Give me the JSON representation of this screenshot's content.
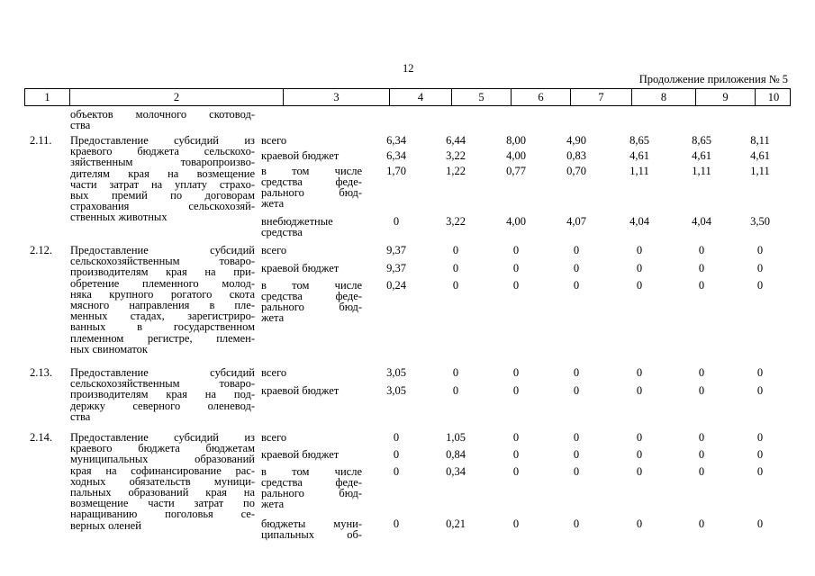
{
  "page": {
    "number": "12",
    "continuation": "Продолжение приложения № 5"
  },
  "header": [
    "1",
    "2",
    "3",
    "4",
    "5",
    "6",
    "7",
    "8",
    "9",
    "10"
  ],
  "carryover": [
    "объектов молочного скотовод-",
    "ства"
  ],
  "rows": [
    {
      "code": "2.11.",
      "description": [
        "Предоставление субсидий из",
        "краевого бюджета сельскохо-",
        "зяйственным товаропроизво-",
        "дителям края на возмещение",
        "части затрат на уплату страхо-",
        "вых премий по договорам",
        "страхования сельскохозяй-",
        "ственных животных"
      ],
      "funding": [
        {
          "source": [
            "всего"
          ],
          "values": [
            "6,34",
            "6,44",
            "8,00",
            "4,90",
            "8,65",
            "8,65",
            "8,11"
          ]
        },
        {
          "source": [
            "краевой бюджет"
          ],
          "values": [
            "6,34",
            "3,22",
            "4,00",
            "0,83",
            "4,61",
            "4,61",
            "4,61"
          ]
        },
        {
          "source": [
            "в том числе",
            "средства феде-",
            "рального бюд-",
            "жета"
          ],
          "values": [
            "1,70",
            "1,22",
            "0,77",
            "0,70",
            "1,11",
            "1,11",
            "1,11"
          ]
        },
        {
          "source": [
            "внебюджетные",
            "средства"
          ],
          "values": [
            "0",
            "3,22",
            "4,00",
            "4,07",
            "4,04",
            "4,04",
            "3,50"
          ]
        }
      ]
    },
    {
      "code": "2.12.",
      "description": [
        "Предоставление субсидий",
        "сельскохозяйственным товаро-",
        "производителям края на при-",
        "обретение племенного молод-",
        "няка крупного рогатого скота",
        "мясного направления в пле-",
        "менных стадах, зарегистриро-",
        "ванных в государственном",
        "племенном регистре, племен-",
        "ных свиноматок"
      ],
      "funding": [
        {
          "source": [
            "всего"
          ],
          "values": [
            "9,37",
            "0",
            "0",
            "0",
            "0",
            "0",
            "0"
          ]
        },
        {
          "source": [
            "краевой бюджет"
          ],
          "values": [
            "9,37",
            "0",
            "0",
            "0",
            "0",
            "0",
            "0"
          ]
        },
        {
          "source": [
            "в том числе",
            "средства феде-",
            "рального бюд-",
            "жета"
          ],
          "values": [
            "0,24",
            "0",
            "0",
            "0",
            "0",
            "0",
            "0"
          ]
        }
      ]
    },
    {
      "code": "2.13.",
      "description": [
        "Предоставление субсидий",
        "сельскохозяйственным товаро-",
        "производителям края на под-",
        "держку северного оленевод-",
        "ства"
      ],
      "funding": [
        {
          "source": [
            "всего"
          ],
          "values": [
            "3,05",
            "0",
            "0",
            "0",
            "0",
            "0",
            "0"
          ]
        },
        {
          "source": [
            "краевой бюджет"
          ],
          "values": [
            "3,05",
            "0",
            "0",
            "0",
            "0",
            "0",
            "0"
          ]
        }
      ]
    },
    {
      "code": "2.14.",
      "description": [
        "Предоставление субсидий из",
        "краевого бюджета бюджетам",
        "муниципальных образований",
        "края на софинансирование рас-",
        "ходных обязательств муници-",
        "пальных образований края на",
        "возмещение части затрат по",
        "наращиванию поголовья се-",
        "верных оленей"
      ],
      "funding": [
        {
          "source": [
            "всего"
          ],
          "values": [
            "0",
            "1,05",
            "0",
            "0",
            "0",
            "0",
            "0"
          ]
        },
        {
          "source": [
            "краевой бюджет"
          ],
          "values": [
            "0",
            "0,84",
            "0",
            "0",
            "0",
            "0",
            "0"
          ]
        },
        {
          "source": [
            "в том числе",
            "средства феде-",
            "рального бюд-",
            "жета"
          ],
          "values": [
            "0",
            "0,34",
            "0",
            "0",
            "0",
            "0",
            "0"
          ]
        },
        {
          "source": [
            "бюджеты муни-",
            "ципальных об-"
          ],
          "values": [
            "0",
            "0,21",
            "0",
            "0",
            "0",
            "0",
            "0"
          ]
        }
      ]
    }
  ]
}
